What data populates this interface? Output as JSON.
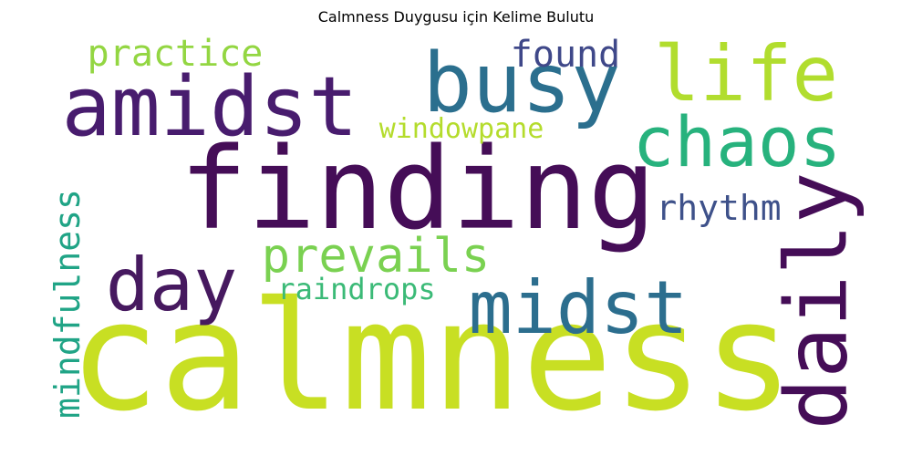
{
  "title": "Calmness Duygusu için Kelime Bulutu",
  "words": [
    {
      "text": "calmness",
      "color": "#c8df23"
    },
    {
      "text": "finding",
      "color": "#450d57"
    },
    {
      "text": "amidst",
      "color": "#481c6e"
    },
    {
      "text": "busy",
      "color": "#2b6f8e"
    },
    {
      "text": "life",
      "color": "#b1dd2e"
    },
    {
      "text": "chaos",
      "color": "#27b27d"
    },
    {
      "text": "daily",
      "color": "#450d57"
    },
    {
      "text": "midst",
      "color": "#2c6e8e"
    },
    {
      "text": "day",
      "color": "#46195f"
    },
    {
      "text": "prevails",
      "color": "#7ad151"
    },
    {
      "text": "practice",
      "color": "#93d642"
    },
    {
      "text": "found",
      "color": "#3f4889"
    },
    {
      "text": "windowpane",
      "color": "#b4dc2c"
    },
    {
      "text": "rhythm",
      "color": "#3e518a"
    },
    {
      "text": "raindrops",
      "color": "#3bba77"
    },
    {
      "text": "mindfulness",
      "color": "#20a486"
    }
  ]
}
